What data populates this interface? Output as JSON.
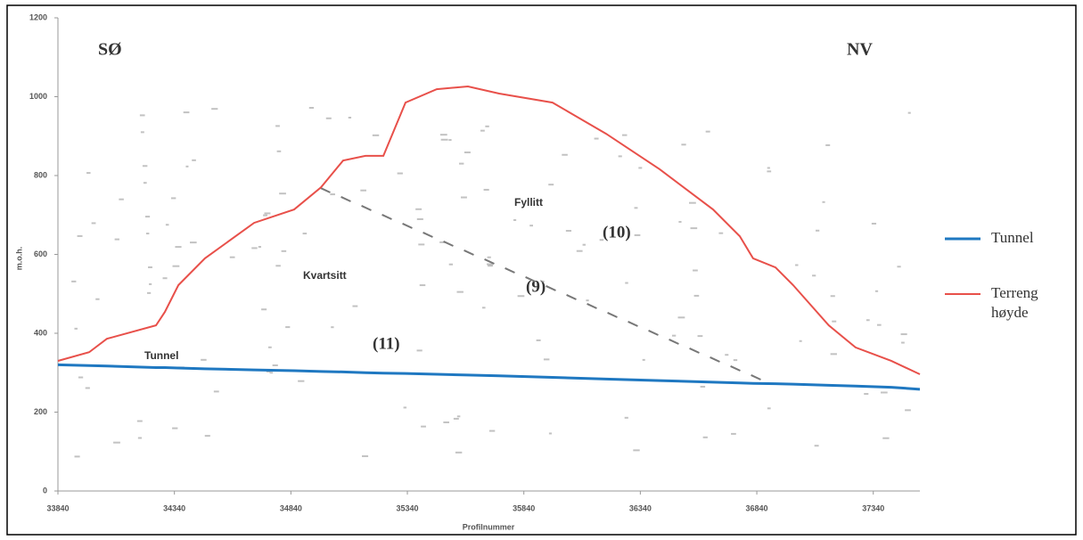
{
  "chart_data": {
    "type": "line",
    "x_label": "Profilnummer",
    "y_label": "m.o.h.",
    "annotations": [
      "SØ",
      "NV",
      "Fyllitt",
      "(10)",
      "Kvartsitt",
      "(9)",
      "(11)",
      "Tunnel"
    ],
    "x": [
      33840,
      33974,
      34050,
      34261,
      34299,
      34357,
      34471,
      34682,
      34854,
      34969,
      35064,
      35160,
      35237,
      35332,
      35466,
      35600,
      35734,
      35963,
      36193,
      36423,
      36652,
      36767,
      36824,
      36920,
      36996,
      37149,
      37264,
      37417,
      37540
    ],
    "series": [
      {
        "name": "Tunnel",
        "color": "#1f78c1",
        "values": [
          320,
          318,
          317,
          313,
          313,
          312,
          310,
          307,
          305,
          303,
          302,
          300,
          299,
          298,
          296,
          294,
          292,
          288,
          284,
          280,
          276,
          274,
          273,
          272,
          271,
          268,
          266,
          263,
          258
        ]
      },
      {
        "name": "Terreng høyde",
        "color": "#e8504a",
        "values": [
          330,
          352,
          386,
          420,
          454,
          522,
          590,
          680,
          714,
          770,
          838,
          850,
          850,
          985,
          1019,
          1026,
          1008,
          985,
          906,
          816,
          714,
          646,
          590,
          567,
          522,
          420,
          364,
          330,
          296
        ]
      }
    ],
    "xlim": [
      33840,
      37540
    ],
    "ylim": [
      0,
      1200
    ],
    "xticks": [
      33840,
      34340,
      34840,
      35340,
      35840,
      36340,
      36840,
      37340
    ],
    "yticks": [
      0,
      200,
      400,
      600,
      800,
      1000,
      1200
    ],
    "legend": "right"
  }
}
